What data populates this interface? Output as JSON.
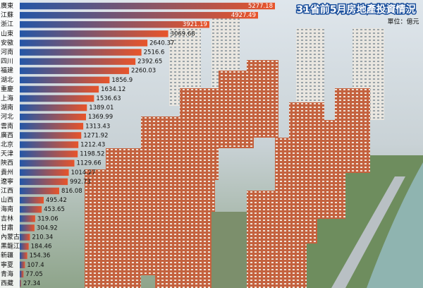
{
  "chart_data": {
    "type": "bar",
    "orientation": "horizontal",
    "title": "31省前5月房地產投資情況",
    "subtitle": "單位：億元",
    "categories": [
      "廣東",
      "江蘇",
      "浙江",
      "山東",
      "安徽",
      "河南",
      "四川",
      "福建",
      "湖北",
      "重慶",
      "上海",
      "湖南",
      "河北",
      "雲南",
      "廣西",
      "北京",
      "天津",
      "陝西",
      "貴州",
      "遼寧",
      "江西",
      "山西",
      "海南",
      "吉林",
      "甘肅",
      "內蒙古",
      "黑龍江",
      "新疆",
      "寧夏",
      "青海",
      "西藏"
    ],
    "values": [
      5277.18,
      4927.49,
      3921.19,
      3069.68,
      2640.37,
      2516.6,
      2392.65,
      2260.03,
      1856.9,
      1634.12,
      1536.63,
      1389.01,
      1369.99,
      1313.43,
      1271.92,
      1212.43,
      1198.52,
      1129.66,
      1014.27,
      992.73,
      816.08,
      495.42,
      453.65,
      319.06,
      304.92,
      210.34,
      184.46,
      154.36,
      107.4,
      77.05,
      27.34
    ],
    "colors": [
      "#2456a6",
      "#e8542a"
    ]
  }
}
